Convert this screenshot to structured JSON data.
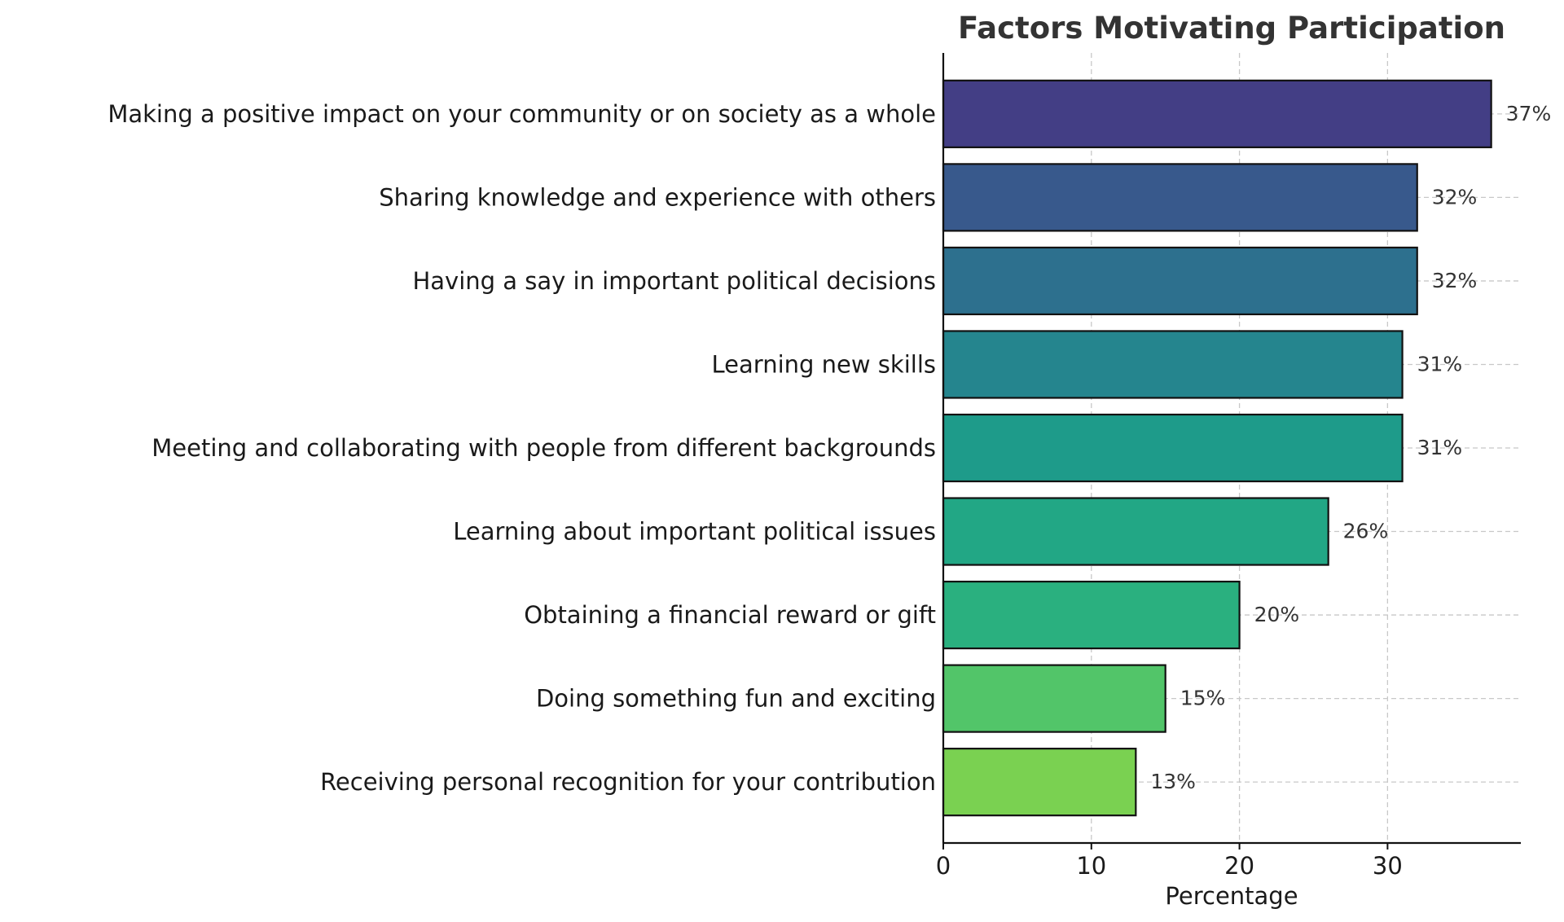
{
  "chart_data": {
    "type": "bar",
    "orientation": "horizontal",
    "title": "Factors Motivating Participation",
    "xlabel": "Percentage",
    "ylabel": "",
    "xlim": [
      0,
      39
    ],
    "xticks": [
      0,
      10,
      20,
      30
    ],
    "grid": true,
    "value_suffix": "%",
    "categories": [
      "Making a positive impact on your community or on society as a whole",
      "Sharing knowledge and experience with others",
      "Having a say in important political decisions",
      "Learning new skills",
      "Meeting and collaborating with people from different backgrounds",
      "Learning about important political issues",
      "Obtaining a financial reward or gift",
      "Doing something fun and exciting",
      "Receiving personal recognition for your contribution"
    ],
    "values": [
      37,
      32,
      32,
      31,
      31,
      26,
      20,
      15,
      13
    ],
    "value_labels": [
      "37%",
      "32%",
      "32%",
      "31%",
      "31%",
      "26%",
      "20%",
      "15%",
      "13%"
    ],
    "colors": [
      "#433e85",
      "#38598c",
      "#2d708e",
      "#25858e",
      "#1e9b8a",
      "#22a785",
      "#2ab07f",
      "#52c569",
      "#7ad151"
    ]
  }
}
